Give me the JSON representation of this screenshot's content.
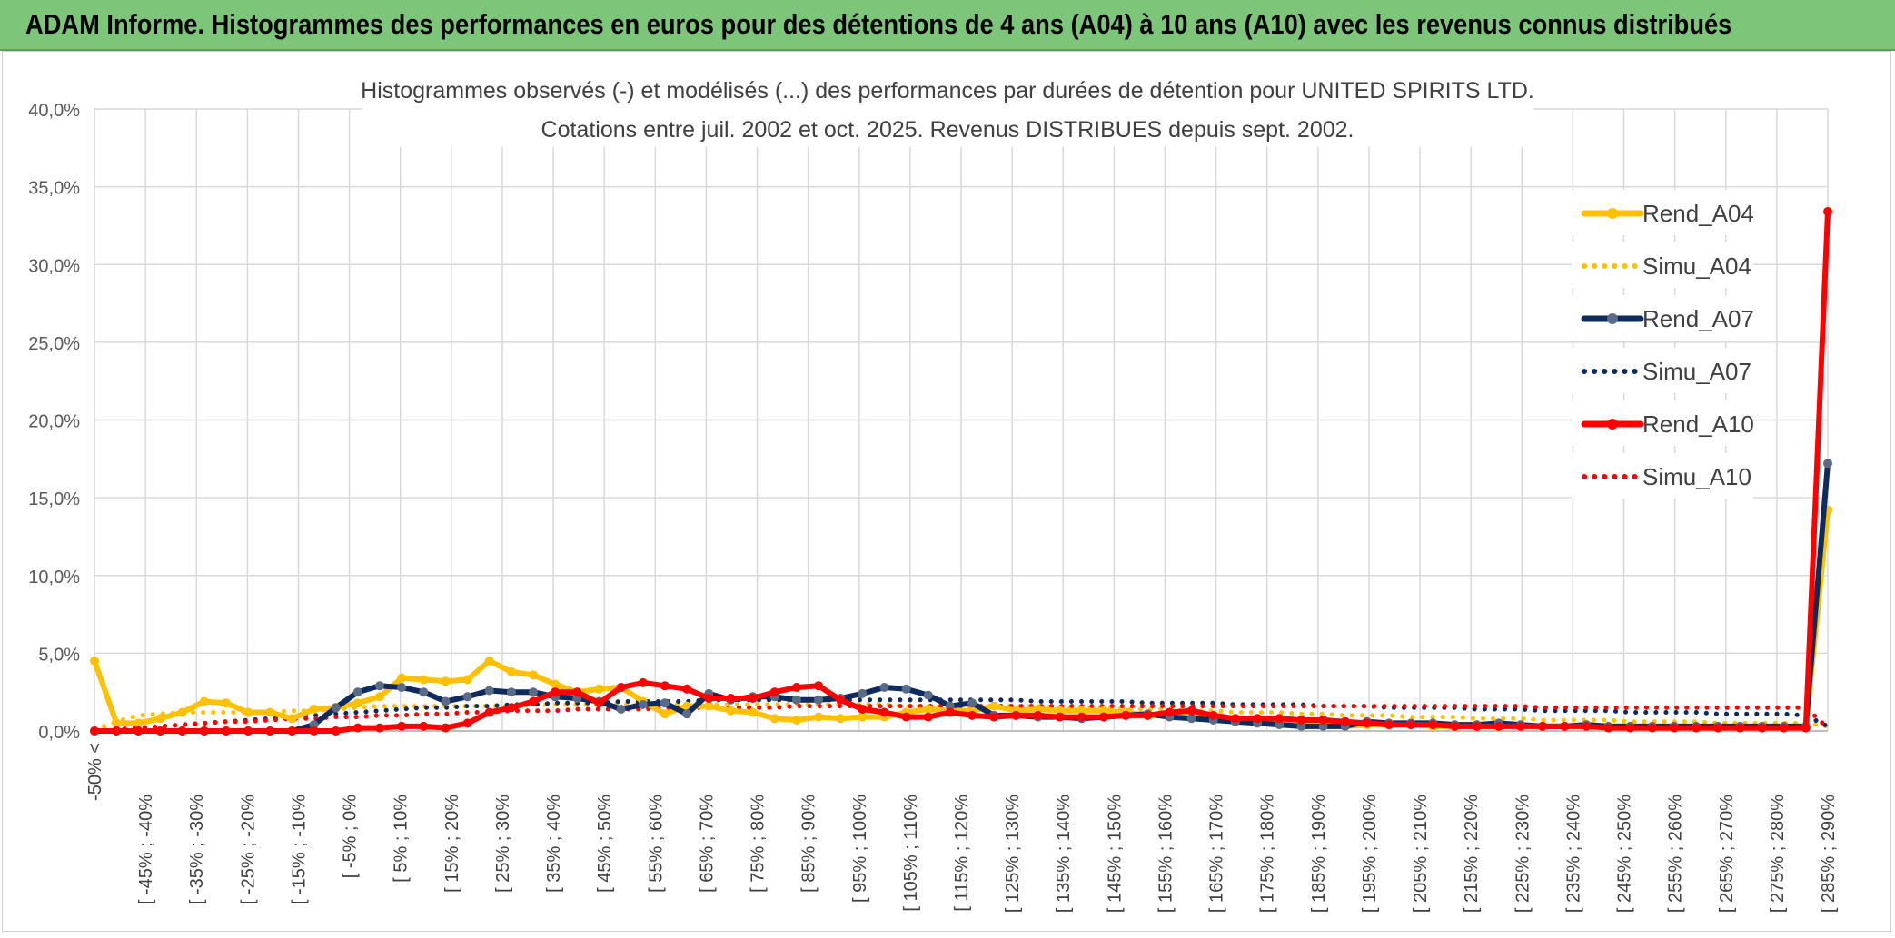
{
  "header": {
    "title": "ADAM Informe. Histogrammes des performances en euros pour des détentions de 4 ans (A04) à 10 ans (A10) avec les revenus connus distribués"
  },
  "chart_data": {
    "type": "line",
    "title_line1": "Histogrammes observés (-) et modélisés (...) des performances par durées de détention pour UNITED SPIRITS LTD.",
    "title_line2": "Cotations entre juil. 2002 et oct. 2025. Revenus DISTRIBUES depuis sept. 2002.",
    "ylim": [
      0,
      40
    ],
    "ytick_values": [
      0,
      5,
      10,
      15,
      20,
      25,
      30,
      35,
      40
    ],
    "ytick_labels": [
      "0,0%",
      "5,0%",
      "10,0%",
      "15,0%",
      "20,0%",
      "25,0%",
      "30,0%",
      "35,0%",
      "40,0%"
    ],
    "xtick_labels": [
      "-50% <",
      "[ -45% ; -40%",
      "[ -35% ; -30%",
      "[ -25% ; -20%",
      "[ -15% ; -10%",
      "[ -5% ; 0%",
      "[ 5% ; 10%",
      "[ 15% ; 20%",
      "[ 25% ; 30%",
      "[ 35% ; 40%",
      "[ 45% ; 50%",
      "[ 55% ; 60%",
      "[ 65% ; 70%",
      "[ 75% ; 80%",
      "[ 85% ; 90%",
      "[ 95% ; 100%",
      "[ 105% ; 110%",
      "[ 115% ; 120%",
      "[ 125% ; 130%",
      "[ 135% ; 140%",
      "[ 145% ; 150%",
      "[ 155% ; 160%",
      "[ 165% ; 170%",
      "[ 175% ; 180%",
      "[ 185% ; 190%",
      "[ 195% ; 200%",
      "[ 205% ; 210%",
      "[ 215% ; 220%",
      "[ 225% ; 230%",
      "[ 235% ; 240%",
      "[ 245% ; 250%",
      "[ 255% ; 260%",
      "[ 265% ; 270%",
      "[ 275% ; 280%",
      "[ 285% ; 290%"
    ],
    "series": [
      {
        "name": "Rend_A04",
        "style": "solid",
        "color": "#ffc000",
        "values": [
          4.5,
          0.5,
          0.5,
          0.8,
          1.2,
          1.9,
          1.8,
          1.2,
          1.2,
          0.8,
          1.4,
          1.5,
          1.8,
          2.2,
          3.4,
          3.3,
          3.2,
          3.3,
          4.5,
          3.8,
          3.6,
          3.0,
          2.5,
          2.7,
          2.8,
          1.9,
          1.1,
          1.6,
          1.6,
          1.3,
          1.2,
          0.8,
          0.7,
          0.9,
          0.8,
          0.9,
          0.9,
          1.2,
          1.4,
          1.3,
          1.3,
          1.6,
          1.3,
          1.4,
          1.3,
          1.3,
          1.3,
          1.2,
          1.0,
          1.0,
          0.9,
          0.8,
          0.8,
          0.6,
          0.6,
          0.6,
          0.4,
          0.3,
          0.4,
          0.4,
          0.4,
          0.3,
          0.3,
          0.3,
          0.3,
          0.3,
          0.3,
          0.3,
          0.3,
          0.3,
          0.3,
          0.2,
          0.3,
          0.3,
          0.2,
          0.2,
          0.2,
          0.2,
          0.2,
          14.2
        ]
      },
      {
        "name": "Simu_A04",
        "style": "dot",
        "color": "#ffc000",
        "values": [
          0.1,
          0.6,
          1.0,
          1.1,
          1.2,
          1.2,
          1.2,
          1.2,
          1.2,
          1.3,
          1.3,
          1.4,
          1.5,
          1.6,
          1.6,
          1.6,
          1.6,
          1.6,
          1.6,
          1.6,
          1.7,
          1.7,
          1.7,
          1.7,
          1.7,
          1.7,
          1.7,
          1.7,
          1.7,
          1.7,
          1.7,
          1.7,
          1.7,
          1.7,
          1.7,
          1.7,
          1.7,
          1.6,
          1.6,
          1.6,
          1.6,
          1.6,
          1.6,
          1.6,
          1.5,
          1.5,
          1.5,
          1.4,
          1.4,
          1.4,
          1.3,
          1.3,
          1.2,
          1.2,
          1.2,
          1.1,
          1.1,
          1.0,
          1.0,
          1.0,
          0.9,
          0.9,
          0.9,
          0.8,
          0.8,
          0.8,
          0.7,
          0.7,
          0.7,
          0.7,
          0.6,
          0.6,
          0.6,
          0.6,
          0.5,
          0.5,
          0.5,
          0.5,
          0.5,
          0.3
        ]
      },
      {
        "name": "Rend_A07",
        "style": "solid",
        "color": "#0f2a5c",
        "values": [
          0.0,
          0.0,
          0.0,
          0.0,
          0.0,
          0.0,
          0.0,
          0.0,
          0.0,
          0.0,
          0.4,
          1.5,
          2.5,
          2.9,
          2.8,
          2.5,
          1.9,
          2.2,
          2.6,
          2.5,
          2.5,
          2.2,
          2.1,
          1.9,
          1.4,
          1.7,
          1.8,
          1.1,
          2.4,
          2.0,
          2.2,
          2.2,
          2.0,
          2.0,
          2.1,
          2.4,
          2.8,
          2.7,
          2.3,
          1.6,
          1.8,
          1.0,
          1.0,
          0.9,
          0.9,
          0.8,
          0.9,
          1.0,
          1.1,
          0.9,
          0.8,
          0.7,
          0.6,
          0.5,
          0.4,
          0.3,
          0.3,
          0.3,
          0.6,
          0.5,
          0.5,
          0.5,
          0.4,
          0.4,
          0.5,
          0.4,
          0.3,
          0.3,
          0.4,
          0.3,
          0.3,
          0.3,
          0.3,
          0.3,
          0.3,
          0.3,
          0.3,
          0.3,
          0.3,
          17.2
        ]
      },
      {
        "name": "Simu_A07",
        "style": "dot",
        "color": "#0f2a5c",
        "values": [
          0.0,
          0.1,
          0.2,
          0.3,
          0.4,
          0.5,
          0.6,
          0.7,
          0.8,
          0.9,
          1.0,
          1.1,
          1.2,
          1.3,
          1.4,
          1.5,
          1.5,
          1.6,
          1.6,
          1.7,
          1.7,
          1.8,
          1.8,
          1.8,
          1.9,
          1.9,
          1.9,
          1.9,
          2.0,
          2.0,
          2.0,
          2.0,
          2.0,
          2.0,
          2.0,
          2.0,
          2.0,
          2.0,
          2.0,
          2.0,
          2.0,
          2.0,
          2.0,
          1.9,
          1.9,
          1.9,
          1.9,
          1.9,
          1.8,
          1.8,
          1.8,
          1.8,
          1.7,
          1.7,
          1.7,
          1.7,
          1.6,
          1.6,
          1.6,
          1.5,
          1.5,
          1.5,
          1.5,
          1.4,
          1.4,
          1.4,
          1.3,
          1.3,
          1.3,
          1.3,
          1.2,
          1.2,
          1.2,
          1.2,
          1.1,
          1.1,
          1.1,
          1.1,
          1.0,
          0.3
        ]
      },
      {
        "name": "Rend_A10",
        "style": "solid",
        "color": "#ff0000",
        "values": [
          0.0,
          0.0,
          0.0,
          0.0,
          0.0,
          0.0,
          0.0,
          0.0,
          0.0,
          0.0,
          0.0,
          0.0,
          0.2,
          0.2,
          0.3,
          0.3,
          0.2,
          0.5,
          1.2,
          1.5,
          1.9,
          2.5,
          2.5,
          1.8,
          2.8,
          3.1,
          2.9,
          2.7,
          2.1,
          2.1,
          2.1,
          2.5,
          2.8,
          2.9,
          2.0,
          1.4,
          1.2,
          0.9,
          0.9,
          1.2,
          1.0,
          0.9,
          1.0,
          1.0,
          0.9,
          0.9,
          0.9,
          1.0,
          1.0,
          1.2,
          1.3,
          1.0,
          0.8,
          0.8,
          0.8,
          0.7,
          0.7,
          0.6,
          0.5,
          0.4,
          0.4,
          0.4,
          0.3,
          0.3,
          0.3,
          0.3,
          0.3,
          0.3,
          0.3,
          0.2,
          0.2,
          0.2,
          0.2,
          0.2,
          0.2,
          0.2,
          0.2,
          0.2,
          0.2,
          33.4
        ]
      },
      {
        "name": "Simu_A10",
        "style": "dot",
        "color": "#ff0000",
        "values": [
          0.0,
          0.1,
          0.2,
          0.3,
          0.4,
          0.5,
          0.6,
          0.6,
          0.7,
          0.8,
          0.8,
          0.9,
          0.9,
          1.0,
          1.0,
          1.1,
          1.1,
          1.2,
          1.2,
          1.3,
          1.3,
          1.3,
          1.4,
          1.4,
          1.4,
          1.4,
          1.5,
          1.5,
          1.5,
          1.5,
          1.5,
          1.5,
          1.6,
          1.6,
          1.6,
          1.6,
          1.6,
          1.6,
          1.6,
          1.6,
          1.6,
          1.6,
          1.6,
          1.6,
          1.6,
          1.6,
          1.6,
          1.6,
          1.6,
          1.6,
          1.6,
          1.6,
          1.6,
          1.6,
          1.6,
          1.6,
          1.6,
          1.6,
          1.6,
          1.6,
          1.6,
          1.6,
          1.6,
          1.6,
          1.6,
          1.6,
          1.5,
          1.5,
          1.5,
          1.5,
          1.5,
          1.5,
          1.5,
          1.5,
          1.5,
          1.5,
          1.5,
          1.5,
          1.5,
          0.2
        ]
      }
    ],
    "legend": [
      "Rend_A04",
      "Simu_A04",
      "Rend_A07",
      "Simu_A07",
      "Rend_A10",
      "Simu_A10"
    ],
    "legend_position": "right"
  }
}
